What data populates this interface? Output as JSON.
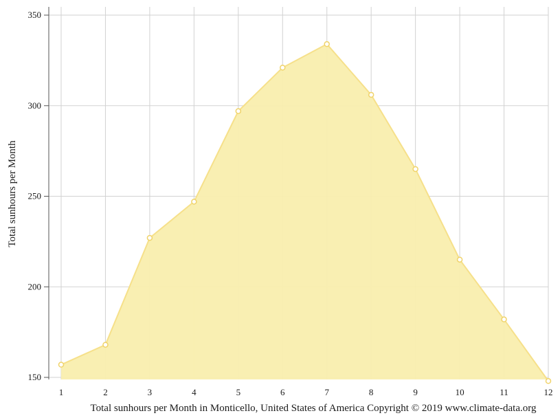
{
  "chart_data": {
    "type": "area",
    "x": [
      1,
      2,
      3,
      4,
      5,
      6,
      7,
      8,
      9,
      10,
      11,
      12
    ],
    "series": [
      {
        "values": [
          157,
          168,
          227,
          247,
          297,
          321,
          334,
          306,
          265,
          215,
          182,
          148
        ]
      }
    ],
    "x_ticks": [
      "1",
      "2",
      "3",
      "4",
      "5",
      "6",
      "7",
      "8",
      "9",
      "10",
      "11",
      "12"
    ],
    "y_ticks": [
      "150",
      "200",
      "250",
      "300",
      "350"
    ],
    "ylabel": "Total sunhours per Month",
    "caption": "Total sunhours per Month in Monticello, United States of America Copyright © 2019 www.climate-data.org",
    "ylim": [
      150,
      350
    ],
    "xlim": [
      1,
      12
    ],
    "grid": true,
    "colors": {
      "fill": "#f9eeae",
      "line": "#f6e08a",
      "marker_fill": "#ffffff",
      "marker_stroke": "#f0d36a"
    }
  }
}
